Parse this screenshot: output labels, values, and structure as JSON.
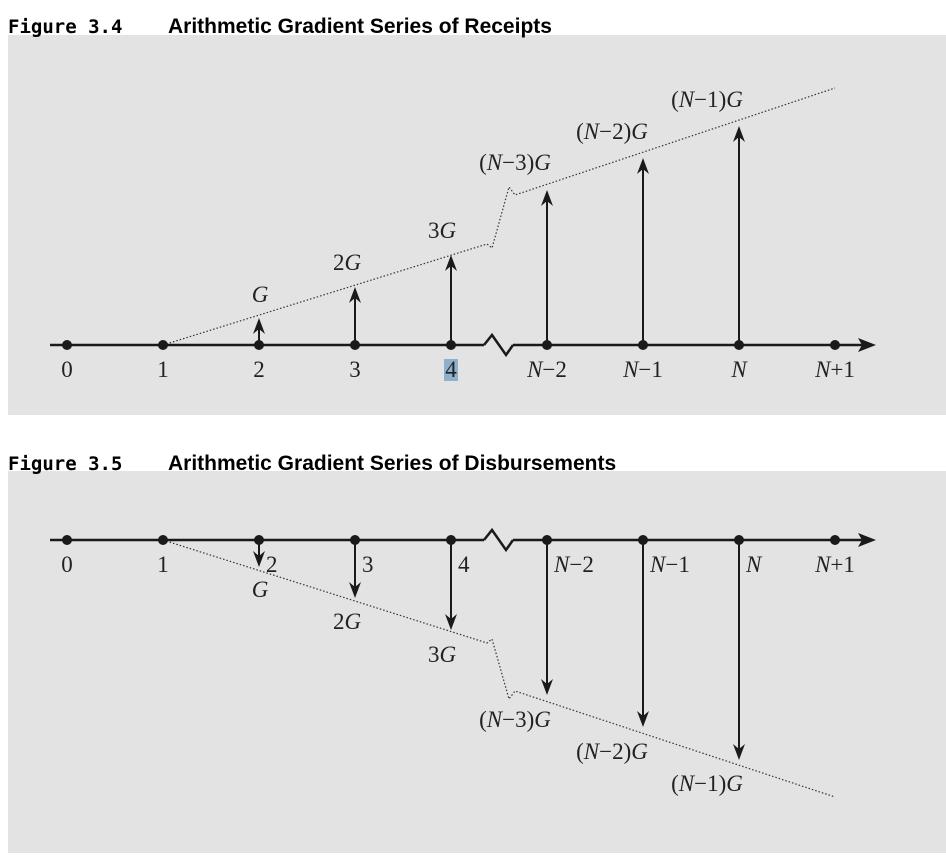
{
  "figures": [
    {
      "number": "Figure 3.4",
      "title": "Arithmetic Gradient Series of Receipts",
      "ticks": [
        "0",
        "1",
        "2",
        "3",
        "4",
        "N−2",
        "N−1",
        "N",
        "N+1"
      ],
      "arrow_labels": [
        "G",
        "2G",
        "3G",
        "(N−3)G",
        "(N−2)G",
        "(N−1)G"
      ]
    },
    {
      "number": "Figure 3.5",
      "title": "Arithmetic Gradient Series of Disbursements",
      "ticks": [
        "0",
        "1",
        "2",
        "3",
        "4",
        "N−2",
        "N−1",
        "N",
        "N+1"
      ],
      "arrow_labels": [
        "G",
        "2G",
        "3G",
        "(N−3)G",
        "(N−2)G",
        "(N−1)G"
      ]
    }
  ]
}
